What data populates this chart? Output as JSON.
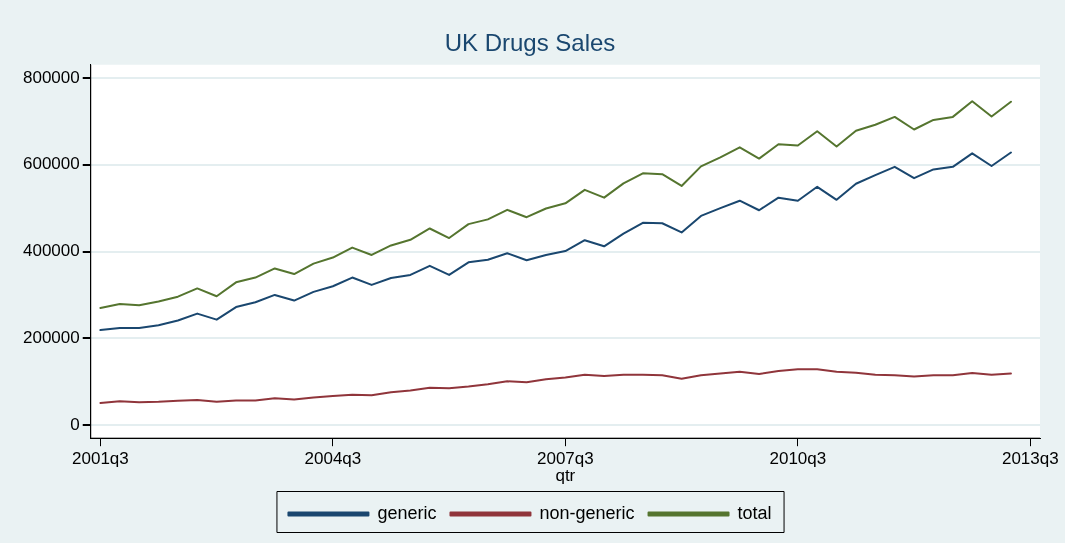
{
  "chart_data": {
    "type": "line",
    "title": "UK Drugs Sales",
    "xlabel": "qtr",
    "categories": [
      "2001q3",
      null,
      null,
      null,
      null,
      null,
      null,
      null,
      null,
      null,
      null,
      null,
      "2004q3",
      null,
      null,
      null,
      null,
      null,
      null,
      null,
      null,
      null,
      null,
      null,
      "2007q3",
      null,
      null,
      null,
      null,
      null,
      null,
      null,
      null,
      null,
      null,
      null,
      "2010q3",
      null,
      null,
      null,
      null,
      null,
      null,
      null,
      null,
      null,
      null,
      null,
      "2013q3"
    ],
    "series": [
      {
        "name": "generic",
        "color": "#1a476f",
        "values": [
          219000,
          224000,
          224000,
          230000,
          241000,
          257000,
          243000,
          272000,
          283000,
          300000,
          287000,
          307000,
          320000,
          340000,
          323000,
          339000,
          346000,
          367000,
          346000,
          375000,
          381000,
          396000,
          380000,
          392000,
          401000,
          426000,
          412000,
          441000,
          466000,
          465000,
          444000,
          482000,
          500000,
          517000,
          495000,
          524000,
          517000,
          549000,
          519000,
          556000,
          576000,
          595000,
          569000,
          589000,
          595000,
          626000,
          597000,
          628000,
          null
        ]
      },
      {
        "name": "non-generic",
        "color": "#90353b",
        "values": [
          51000,
          55000,
          53000,
          54000,
          56000,
          58000,
          54000,
          57000,
          57000,
          62000,
          59000,
          64000,
          67000,
          70000,
          69000,
          76000,
          80000,
          86000,
          85000,
          89000,
          94000,
          101000,
          99000,
          106000,
          110000,
          116000,
          113000,
          116000,
          116000,
          115000,
          107000,
          115000,
          119000,
          123000,
          118000,
          125000,
          129000,
          129000,
          123000,
          121000,
          116000,
          115000,
          112000,
          115000,
          115000,
          120000,
          116000,
          119000,
          null
        ]
      },
      {
        "name": "total",
        "color": "#55752f",
        "values": [
          270000,
          279000,
          276000,
          285000,
          296000,
          315000,
          297000,
          329000,
          340000,
          361000,
          348000,
          372000,
          386000,
          409000,
          392000,
          414000,
          427000,
          453000,
          431000,
          463000,
          474000,
          496000,
          479000,
          499000,
          511000,
          542000,
          524000,
          557000,
          580000,
          578000,
          551000,
          596000,
          617000,
          640000,
          614000,
          647000,
          644000,
          677000,
          642000,
          678000,
          692000,
          710000,
          681000,
          703000,
          710000,
          746000,
          711000,
          745000,
          null
        ]
      }
    ],
    "ylim": [
      -30000,
      830000
    ],
    "yticks": [
      0,
      200000,
      400000,
      600000,
      800000
    ],
    "grid": "y",
    "legend": "bottom",
    "marker": "none",
    "line_style": "solid"
  }
}
